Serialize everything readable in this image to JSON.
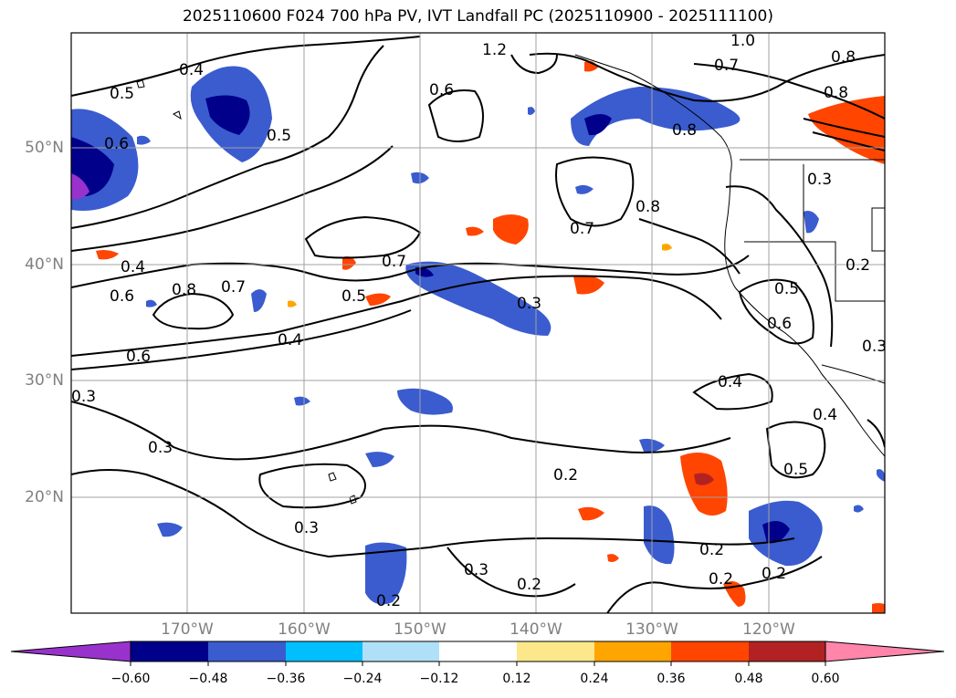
{
  "title": "2025110600 F024 700 hPa PV, IVT Landfall PC (2025110900 - 2025111100)",
  "map": {
    "lat_labels": [
      "50°N",
      "40°N",
      "30°N",
      "20°N"
    ],
    "lon_labels": [
      "170°W",
      "160°W",
      "150°W",
      "140°W",
      "130°W",
      "120°W"
    ],
    "contour_labels": [
      "0.4",
      "0.5",
      "0.6",
      "0.5",
      "1.2",
      "0.6",
      "1.0",
      "0.7",
      "0.8",
      "0.8",
      "0.8",
      "0.7",
      "0.8",
      "0.3",
      "0.4",
      "0.6",
      "0.8",
      "0.7",
      "0.7",
      "0.5",
      "0.4",
      "0.3",
      "0.2",
      "0.5",
      "0.6",
      "0.6",
      "0.3",
      "0.4",
      "0.3",
      "0.4",
      "0.5",
      "0.2",
      "0.3",
      "0.3",
      "0.2",
      "0.2",
      "0.2",
      "0.2",
      "0.2",
      "0.3"
    ]
  },
  "colorbar": {
    "ticks": [
      "−0.60",
      "−0.48",
      "−0.36",
      "−0.24",
      "−0.12",
      "0.12",
      "0.24",
      "0.36",
      "0.48",
      "0.60"
    ],
    "colors": [
      "#9932cc",
      "#00008b",
      "#3a5ccf",
      "#00bfff",
      "#b0e0f8",
      "#ffffff",
      "#fce88a",
      "#ffa500",
      "#ff4500",
      "#b22222",
      "#ff85aa"
    ]
  }
}
